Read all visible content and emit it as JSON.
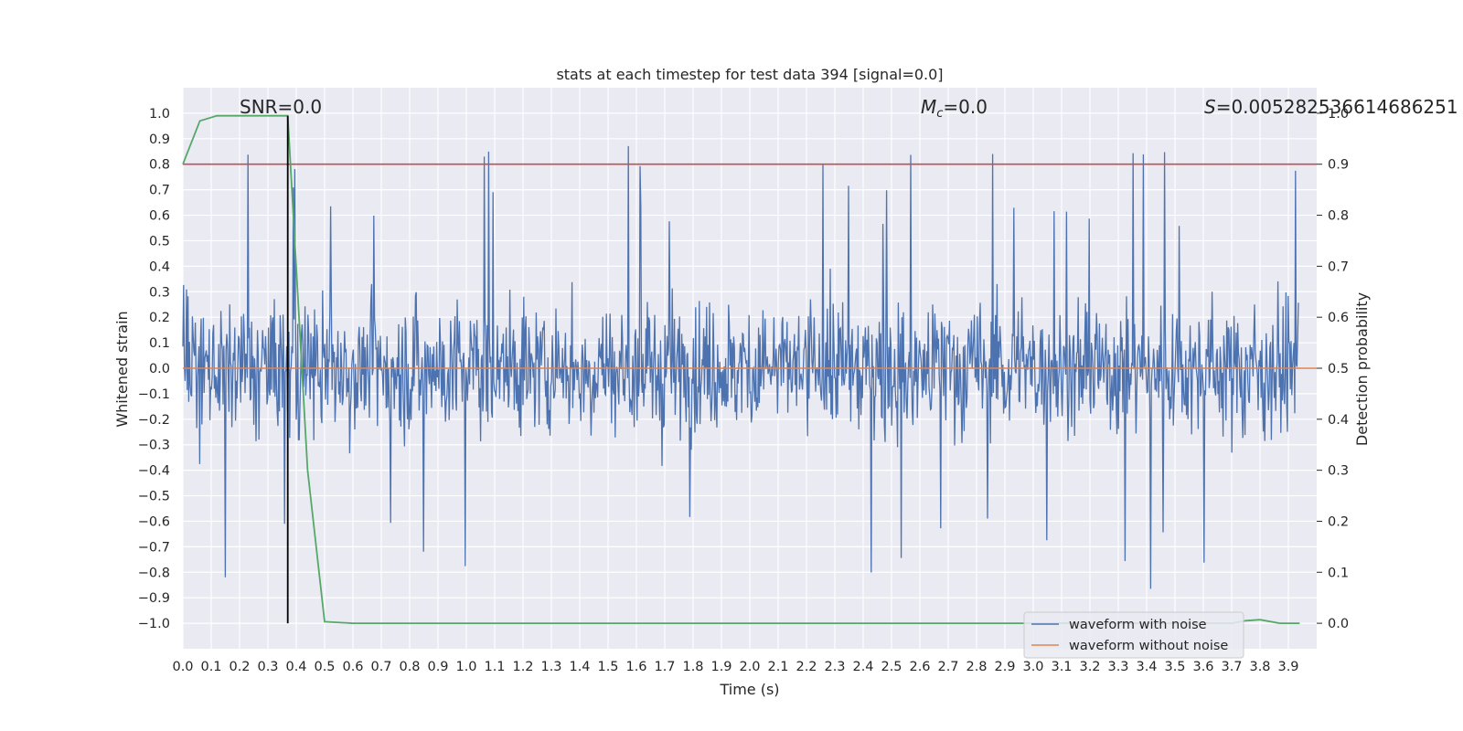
{
  "chart_data": {
    "type": "line",
    "title": "stats at each timestep for test data 394 [signal=0.0]",
    "xlabel": "Time (s)",
    "ylabel": "Whitened strain",
    "y2label": "Detection probability",
    "xlim": [
      0.0,
      4.0
    ],
    "ylim": [
      -1.1,
      1.1
    ],
    "y2lim": [
      -0.05,
      1.05
    ],
    "x_ticks": [
      "0.0",
      "0.1",
      "0.2",
      "0.3",
      "0.4",
      "0.5",
      "0.6",
      "0.7",
      "0.8",
      "0.9",
      "1.0",
      "1.1",
      "1.2",
      "1.3",
      "1.4",
      "1.5",
      "1.6",
      "1.7",
      "1.8",
      "1.9",
      "2.0",
      "2.1",
      "2.2",
      "2.3",
      "2.4",
      "2.5",
      "2.6",
      "2.7",
      "2.8",
      "2.9",
      "3.0",
      "3.1",
      "3.2",
      "3.3",
      "3.4",
      "3.5",
      "3.6",
      "3.7",
      "3.8",
      "3.9"
    ],
    "y_ticks": [
      "1.0",
      "0.9",
      "0.8",
      "0.7",
      "0.6",
      "0.5",
      "0.4",
      "0.3",
      "0.2",
      "0.1",
      "0.0",
      "−0.1",
      "−0.2",
      "−0.3",
      "−0.4",
      "−0.5",
      "−0.6",
      "−0.7",
      "−0.8",
      "−0.9",
      "−1.0"
    ],
    "y2_ticks": [
      "1.0",
      "0.9",
      "0.8",
      "0.7",
      "0.6",
      "0.5",
      "0.4",
      "0.3",
      "0.2",
      "0.1",
      "0.0"
    ],
    "grid": true,
    "legend_position": "lower-right",
    "annotations": {
      "snr": "SNR=0.0",
      "mc_symbol": "M",
      "mc_sub": "c",
      "mc_value": "=0.0",
      "s_symbol": "S",
      "s_value": "=0.005282536614686251"
    },
    "series": [
      {
        "name": "waveform with noise",
        "color": "#4c72b0",
        "description": "whitened noisy strain, values approx within -1.0..1.0"
      },
      {
        "name": "waveform without noise",
        "color": "#dd8452",
        "value": 0.0
      },
      {
        "name": "detection probability",
        "color": "#55a868",
        "axis": "right",
        "x": [
          0.0,
          0.06,
          0.12,
          0.2,
          0.3,
          0.37,
          0.44,
          0.5,
          0.6,
          1.0,
          2.0,
          3.0,
          3.6,
          3.7,
          3.75,
          3.8,
          3.87,
          3.94
        ],
        "values": [
          0.9,
          0.985,
          0.995,
          0.995,
          0.995,
          0.995,
          0.3,
          0.003,
          0.0,
          0.0,
          0.0,
          0.0,
          0.0,
          0.0,
          0.005,
          0.007,
          0.0,
          0.0
        ]
      }
    ],
    "threshold": {
      "color": "#c44e52",
      "y2": 0.9
    },
    "marker_line": {
      "color": "#000000",
      "x": 0.37
    }
  }
}
